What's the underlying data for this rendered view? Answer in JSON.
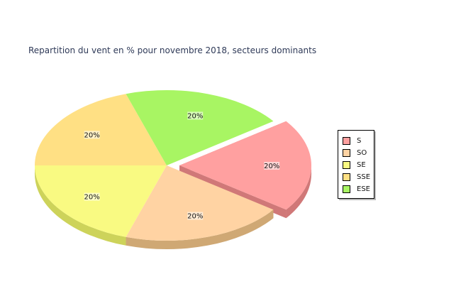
{
  "chart_data": {
    "type": "pie",
    "title": "Repartition du vent en % pour novembre 2018, secteurs dominants",
    "three_d": true,
    "exploded_slice": "S",
    "slices": [
      {
        "label": "S",
        "value": 20,
        "value_label": "20%",
        "color": "#ffa0a0",
        "side_color": "#d07878"
      },
      {
        "label": "SO",
        "value": 20,
        "value_label": "20%",
        "color": "#ffd3a3",
        "side_color": "#cfa874"
      },
      {
        "label": "SE",
        "value": 20,
        "value_label": "20%",
        "color": "#f9fa82",
        "side_color": "#cdd35a"
      },
      {
        "label": "SSE",
        "value": 20,
        "value_label": "20%",
        "color": "#ffe084",
        "side_color": "#d9b560"
      },
      {
        "label": "ESE",
        "value": 20,
        "value_label": "20%",
        "color": "#a8f563",
        "side_color": "#7cc93d"
      }
    ],
    "legend_position": "right"
  }
}
